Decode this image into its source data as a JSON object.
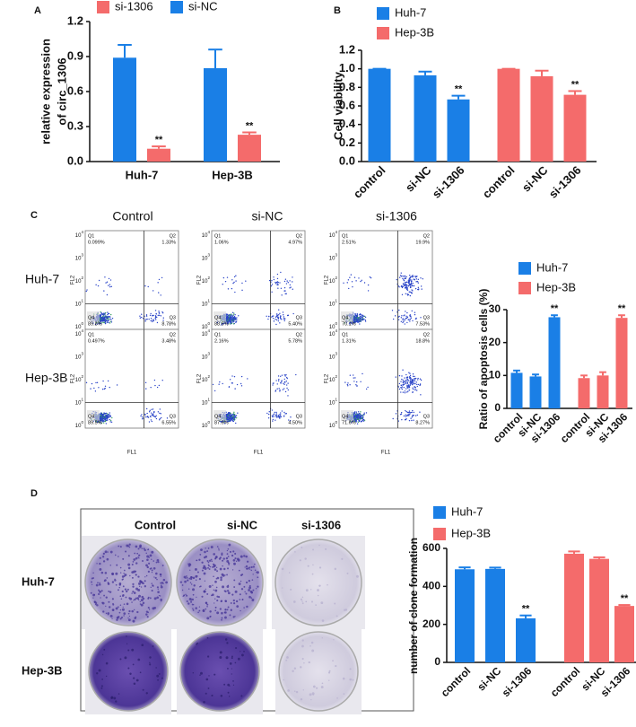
{
  "chart_data": [
    {
      "type": "bar",
      "panel_label": "A",
      "ylabel": [
        "relative expression",
        "of circ_1306"
      ],
      "categories": [
        "Huh-7",
        "Hep-3B"
      ],
      "series": [
        {
          "name": "si-1306",
          "color": "#f46b6b",
          "values": [
            0.11,
            0.23
          ],
          "errors": [
            0.02,
            0.02
          ],
          "annotations": [
            "**",
            "**"
          ]
        },
        {
          "name": "si-NC",
          "color": "#1a7fe6",
          "values": [
            0.89,
            0.8
          ],
          "errors": [
            0.11,
            0.16
          ]
        }
      ],
      "ylim": [
        0,
        1.2
      ],
      "yticks": [
        {
          "value": 0,
          "label": "0.0"
        },
        0.3,
        0.6,
        0.9,
        1.2
      ]
    },
    {
      "type": "bar",
      "panel_label": "B",
      "ylabel": "Cell viability",
      "categories": [
        "control",
        "si-NC",
        "si-1306",
        "control",
        "si-NC",
        "si-1306"
      ],
      "series": [
        {
          "name": "Huh-7",
          "color": "#1a7fe6",
          "values": [
            1.0,
            0.93,
            0.67,
            null,
            null,
            null
          ],
          "errors": [
            0,
            0.04,
            0.04,
            null,
            null,
            null
          ],
          "annotations": [
            null,
            null,
            "**",
            null,
            null,
            null
          ]
        },
        {
          "name": "Hep-3B",
          "color": "#f46b6b",
          "values": [
            null,
            null,
            null,
            1.0,
            0.92,
            0.72
          ],
          "errors": [
            null,
            null,
            null,
            0,
            0.06,
            0.04
          ],
          "annotations": [
            null,
            null,
            null,
            null,
            null,
            "**"
          ]
        }
      ],
      "ylim": [
        0,
        1.2
      ],
      "yticks": [
        {
          "value": 0,
          "label": "0.0"
        },
        0.2,
        0.4,
        0.6,
        0.8,
        {
          "value": 1,
          "label": "1.0"
        },
        1.2
      ]
    },
    {
      "type": "bar",
      "ylabel": "Ratio of apoptosis cells (%)",
      "categories": [
        "control",
        "si-NC",
        "si-1306",
        "control",
        "si-NC",
        "si-1306"
      ],
      "series": [
        {
          "name": "Huh-7",
          "color": "#1a7fe6",
          "values": [
            10.8,
            9.7,
            27.7,
            null,
            null,
            null
          ],
          "errors": [
            0.7,
            0.6,
            0.6,
            null,
            null,
            null
          ],
          "annotations": [
            null,
            null,
            "**",
            null,
            null,
            null
          ]
        },
        {
          "name": "Hep-3B",
          "color": "#f46b6b",
          "values": [
            null,
            null,
            null,
            9.2,
            10.0,
            27.5
          ],
          "errors": [
            null,
            null,
            null,
            0.8,
            1.0,
            0.8
          ],
          "annotations": [
            null,
            null,
            null,
            null,
            null,
            "**"
          ]
        }
      ],
      "ylim": [
        0,
        30
      ],
      "yticks": [
        0,
        10,
        20,
        30
      ]
    },
    {
      "type": "bar",
      "ylabel": "number of clone formation",
      "categories": [
        "control",
        "si-NC",
        "si-1306",
        "control",
        "si-NC",
        "si-1306"
      ],
      "series": [
        {
          "name": "Huh-7",
          "color": "#1a7fe6",
          "values": [
            490,
            492,
            232,
            null,
            null,
            null
          ],
          "errors": [
            10,
            7,
            15,
            null,
            null,
            null
          ],
          "annotations": [
            null,
            null,
            "**",
            null,
            null,
            null
          ]
        },
        {
          "name": "Hep-3B",
          "color": "#f46b6b",
          "values": [
            null,
            null,
            null,
            572,
            545,
            297
          ],
          "errors": [
            null,
            null,
            null,
            12,
            8,
            5
          ],
          "annotations": [
            null,
            null,
            null,
            null,
            null,
            "**"
          ]
        }
      ],
      "ylim": [
        0,
        600
      ],
      "yticks": [
        0,
        200,
        400,
        600
      ]
    }
  ],
  "flow_cytometry": {
    "panel_label": "C",
    "columns": [
      "Control",
      "si-NC",
      "si-1306"
    ],
    "rows": [
      "Huh-7",
      "Hep-3B"
    ],
    "x_label": "FL1",
    "y_label": "FL2",
    "tick_base": "10",
    "tick_exponents": [
      0,
      1,
      2,
      3,
      4
    ],
    "quadrant_names": [
      "Q1",
      "Q2",
      "Q3",
      "Q4"
    ],
    "plots": [
      [
        [
          "0.099%",
          "1.33%",
          "8.78%",
          "89.8%"
        ],
        [
          "1.06%",
          "4.97%",
          "5.40%",
          "88.6%"
        ],
        [
          "2.51%",
          "19.9%",
          "7.53%",
          "70.1%"
        ]
      ],
      [
        [
          "0.497%",
          "3.48%",
          "6.55%",
          "89.5%"
        ],
        [
          "2.16%",
          "5.78%",
          "4.50%",
          "87.6%"
        ],
        [
          "1.31%",
          "18.8%",
          "8.27%",
          "71.6%"
        ]
      ]
    ]
  },
  "colony_assay": {
    "panel_label": "D",
    "columns": [
      "Control",
      "si-NC",
      "si-1306"
    ],
    "rows": [
      "Huh-7",
      "Hep-3B"
    ]
  }
}
